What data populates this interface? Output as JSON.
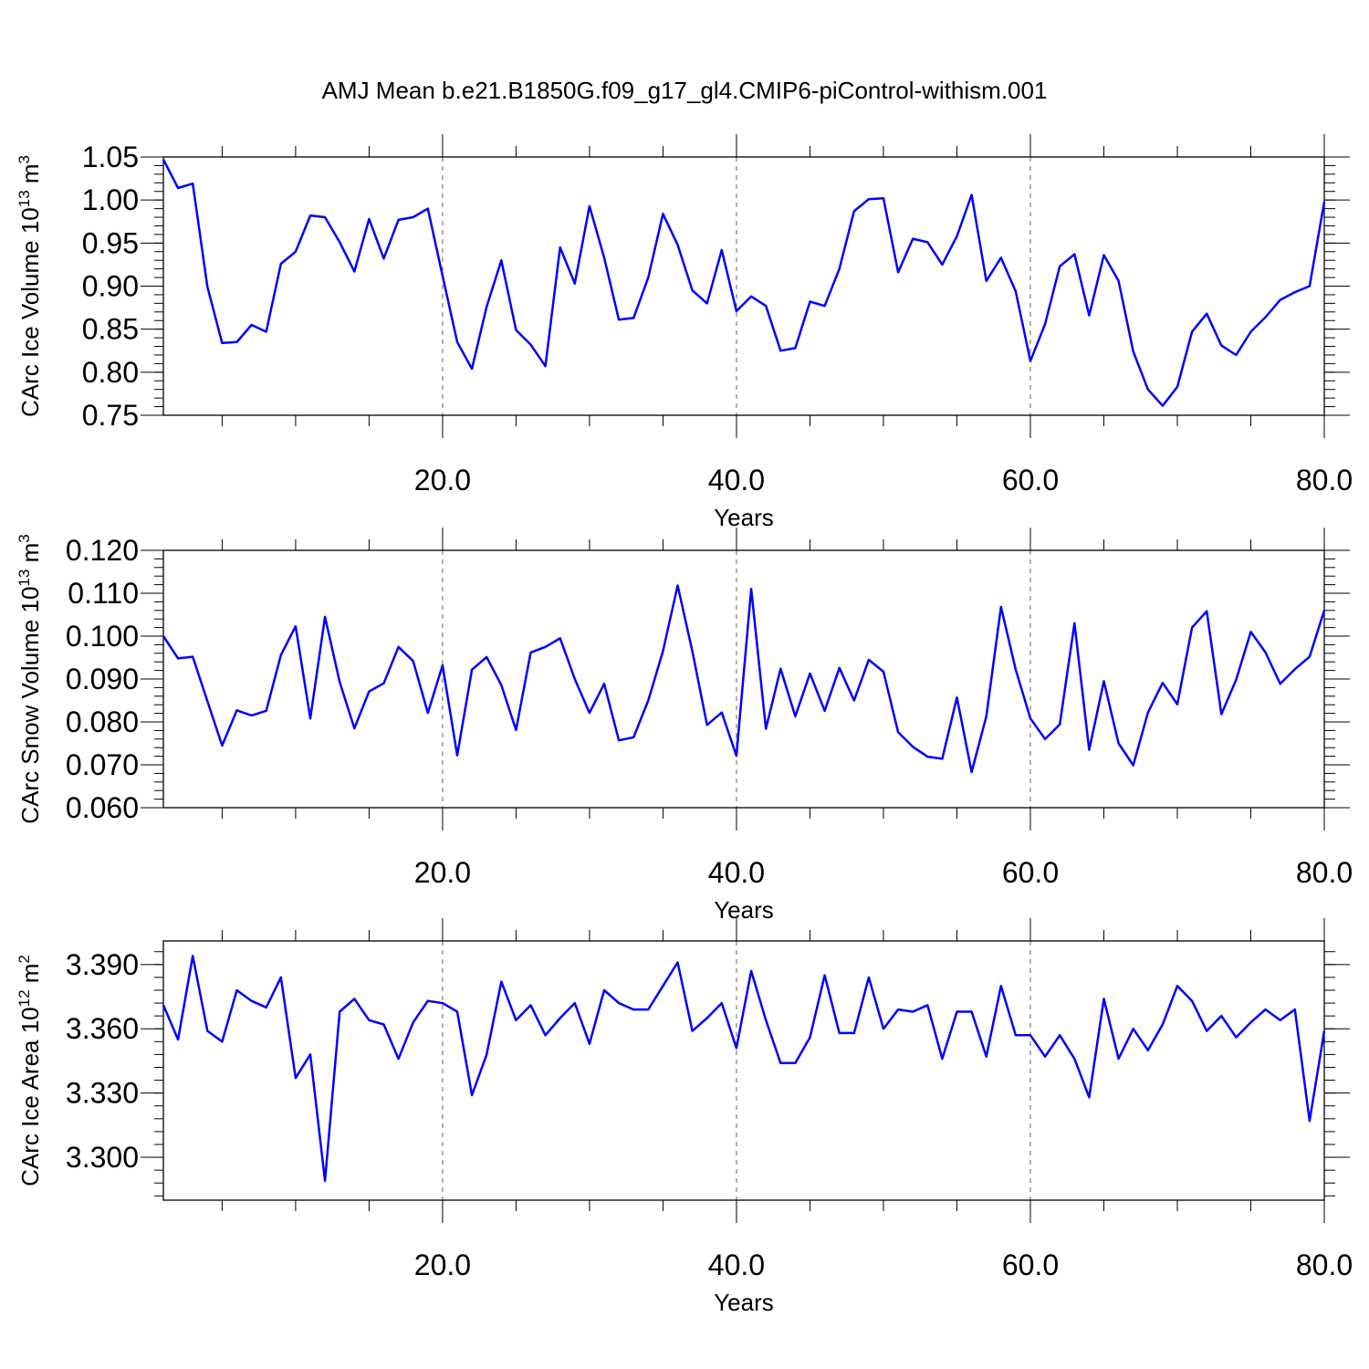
{
  "title": "AMJ Mean b.e21.B1850G.f09_g17_gl4.CMIP6-piControl-withism.001",
  "colors": {
    "line": "#0000ff",
    "axis": "#000000",
    "background": "#ffffff"
  },
  "chart_data": [
    {
      "type": "line",
      "ylabel": "CArc Ice Volume 10",
      "ylabel_exp": "13",
      "ylabel_unit": " m",
      "ylabel_unit_exp": "3",
      "xlabel": "Years",
      "xlim": [
        1,
        80
      ],
      "ylim": [
        0.75,
        1.05
      ],
      "y_ticks": [
        0.75,
        0.8,
        0.85,
        0.9,
        0.95,
        1.0,
        1.05
      ],
      "y_tick_labels": [
        "0.75",
        "0.80",
        "0.85",
        "0.90",
        "0.95",
        "1.00",
        "1.05"
      ],
      "y_minor_step": 0.01,
      "x_ticks": [
        20,
        40,
        60,
        80
      ],
      "x_tick_labels": [
        "20.0",
        "40.0",
        "60.0",
        "80.0"
      ],
      "x_minor_step": 5,
      "grid": "vertical dashed at major x ticks",
      "x": [
        1,
        2,
        3,
        4,
        5,
        6,
        7,
        8,
        9,
        10,
        11,
        12,
        13,
        14,
        15,
        16,
        17,
        18,
        19,
        20,
        21,
        22,
        23,
        24,
        25,
        26,
        27,
        28,
        29,
        30,
        31,
        32,
        33,
        34,
        35,
        36,
        37,
        38,
        39,
        40,
        41,
        42,
        43,
        44,
        45,
        46,
        47,
        48,
        49,
        50,
        51,
        52,
        53,
        54,
        55,
        56,
        57,
        58,
        59,
        60,
        61,
        62,
        63,
        64,
        65,
        66,
        67,
        68,
        69,
        70,
        71,
        72,
        73,
        74,
        75,
        76,
        77,
        78,
        79,
        80
      ],
      "values": [
        1.047,
        1.014,
        1.019,
        0.899,
        0.834,
        0.835,
        0.855,
        0.847,
        0.926,
        0.94,
        0.982,
        0.98,
        0.951,
        0.917,
        0.978,
        0.932,
        0.977,
        0.98,
        0.99,
        0.912,
        0.835,
        0.804,
        0.876,
        0.93,
        0.849,
        0.832,
        0.807,
        0.945,
        0.903,
        0.993,
        0.933,
        0.861,
        0.863,
        0.91,
        0.984,
        0.948,
        0.895,
        0.88,
        0.942,
        0.871,
        0.888,
        0.877,
        0.825,
        0.828,
        0.882,
        0.877,
        0.92,
        0.987,
        1.001,
        1.002,
        0.916,
        0.955,
        0.951,
        0.925,
        0.958,
        1.006,
        0.906,
        0.933,
        0.894,
        0.813,
        0.856,
        0.923,
        0.937,
        0.866,
        0.936,
        0.906,
        0.824,
        0.78,
        0.761,
        0.783,
        0.847,
        0.868,
        0.831,
        0.82,
        0.847,
        0.864,
        0.884,
        0.893,
        0.9,
        0.998
      ]
    },
    {
      "type": "line",
      "ylabel": "CArc Snow Volume 10",
      "ylabel_exp": "13",
      "ylabel_unit": " m",
      "ylabel_unit_exp": "3",
      "xlabel": "Years",
      "xlim": [
        1,
        80
      ],
      "ylim": [
        0.06,
        0.12
      ],
      "y_ticks": [
        0.06,
        0.07,
        0.08,
        0.09,
        0.1,
        0.11,
        0.12
      ],
      "y_tick_labels": [
        "0.060",
        "0.070",
        "0.080",
        "0.090",
        "0.100",
        "0.110",
        "0.120"
      ],
      "y_minor_step": 0.002,
      "x_ticks": [
        20,
        40,
        60,
        80
      ],
      "x_tick_labels": [
        "20.0",
        "40.0",
        "60.0",
        "80.0"
      ],
      "x_minor_step": 5,
      "grid": "vertical dashed at major x ticks",
      "x": [
        1,
        2,
        3,
        4,
        5,
        6,
        7,
        8,
        9,
        10,
        11,
        12,
        13,
        14,
        15,
        16,
        17,
        18,
        19,
        20,
        21,
        22,
        23,
        24,
        25,
        26,
        27,
        28,
        29,
        30,
        31,
        32,
        33,
        34,
        35,
        36,
        37,
        38,
        39,
        40,
        41,
        42,
        43,
        44,
        45,
        46,
        47,
        48,
        49,
        50,
        51,
        52,
        53,
        54,
        55,
        56,
        57,
        58,
        59,
        60,
        61,
        62,
        63,
        64,
        65,
        66,
        67,
        68,
        69,
        70,
        71,
        72,
        73,
        74,
        75,
        76,
        77,
        78,
        79,
        80
      ],
      "values": [
        0.1,
        0.0948,
        0.0952,
        0.0848,
        0.0745,
        0.0827,
        0.0815,
        0.0826,
        0.0956,
        0.1023,
        0.0808,
        0.1045,
        0.0893,
        0.0785,
        0.0871,
        0.089,
        0.0975,
        0.0942,
        0.0821,
        0.0932,
        0.0722,
        0.0922,
        0.0951,
        0.0886,
        0.0781,
        0.0962,
        0.0975,
        0.0995,
        0.09,
        0.0821,
        0.0889,
        0.0757,
        0.0764,
        0.085,
        0.0965,
        0.1118,
        0.0965,
        0.0793,
        0.0822,
        0.0721,
        0.111,
        0.0784,
        0.0924,
        0.0813,
        0.0913,
        0.0826,
        0.0926,
        0.085,
        0.0945,
        0.0917,
        0.0776,
        0.0742,
        0.0719,
        0.0714,
        0.0857,
        0.0683,
        0.0813,
        0.1068,
        0.0922,
        0.0808,
        0.076,
        0.0794,
        0.103,
        0.0735,
        0.0895,
        0.075,
        0.0699,
        0.0822,
        0.0891,
        0.0841,
        0.102,
        0.1058,
        0.0818,
        0.0898,
        0.101,
        0.0962,
        0.0889,
        0.0923,
        0.0952,
        0.106
      ]
    },
    {
      "type": "line",
      "ylabel": "CArc Ice Area 10",
      "ylabel_exp": "12",
      "ylabel_unit": " m",
      "ylabel_unit_exp": "2",
      "xlabel": "Years",
      "xlim": [
        1,
        80
      ],
      "ylim": [
        3.28,
        3.401
      ],
      "y_ticks": [
        3.3,
        3.33,
        3.36,
        3.39
      ],
      "y_tick_labels": [
        "3.300",
        "3.330",
        "3.360",
        "3.390"
      ],
      "y_minor_step": 0.006,
      "x_ticks": [
        20,
        40,
        60,
        80
      ],
      "x_tick_labels": [
        "20.0",
        "40.0",
        "60.0",
        "80.0"
      ],
      "x_minor_step": 5,
      "grid": "vertical dashed at major x ticks",
      "x": [
        1,
        2,
        3,
        4,
        5,
        6,
        7,
        8,
        9,
        10,
        11,
        12,
        13,
        14,
        15,
        16,
        17,
        18,
        19,
        20,
        21,
        22,
        23,
        24,
        25,
        26,
        27,
        28,
        29,
        30,
        31,
        32,
        33,
        34,
        35,
        36,
        37,
        38,
        39,
        40,
        41,
        42,
        43,
        44,
        45,
        46,
        47,
        48,
        49,
        50,
        51,
        52,
        53,
        54,
        55,
        56,
        57,
        58,
        59,
        60,
        61,
        62,
        63,
        64,
        65,
        66,
        67,
        68,
        69,
        70,
        71,
        72,
        73,
        74,
        75,
        76,
        77,
        78,
        79,
        80
      ],
      "values": [
        3.371,
        3.355,
        3.394,
        3.359,
        3.354,
        3.378,
        3.373,
        3.37,
        3.384,
        3.337,
        3.348,
        3.289,
        3.368,
        3.374,
        3.364,
        3.362,
        3.346,
        3.363,
        3.373,
        3.372,
        3.368,
        3.329,
        3.348,
        3.382,
        3.364,
        3.371,
        3.357,
        3.365,
        3.372,
        3.353,
        3.378,
        3.372,
        3.369,
        3.369,
        3.38,
        3.391,
        3.359,
        3.365,
        3.372,
        3.351,
        3.387,
        3.364,
        3.344,
        3.344,
        3.356,
        3.385,
        3.358,
        3.358,
        3.384,
        3.36,
        3.369,
        3.368,
        3.371,
        3.346,
        3.368,
        3.368,
        3.347,
        3.38,
        3.357,
        3.357,
        3.347,
        3.357,
        3.346,
        3.328,
        3.374,
        3.346,
        3.36,
        3.35,
        3.362,
        3.38,
        3.373,
        3.359,
        3.366,
        3.356,
        3.363,
        3.369,
        3.364,
        3.369,
        3.317,
        3.359
      ]
    }
  ]
}
